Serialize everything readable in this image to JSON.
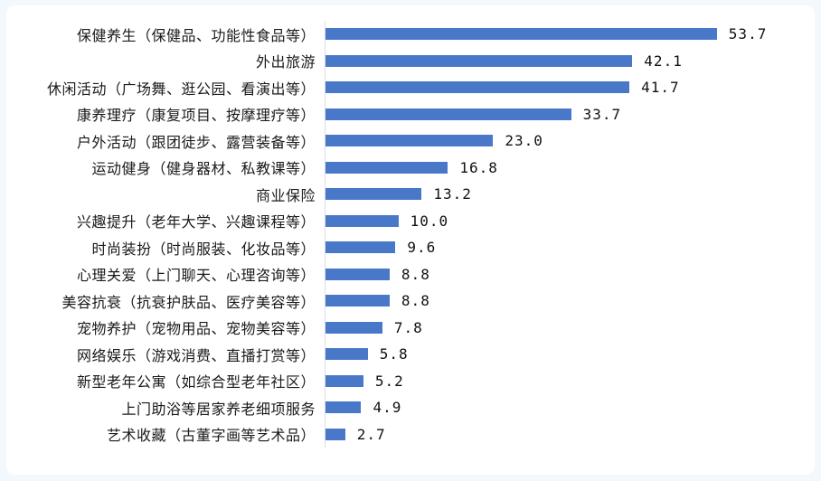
{
  "colors": {
    "bar": "#4A78C8",
    "axis_line": "#D9DEE4",
    "panel_background": "#FFFFFF",
    "page_background": "#F3F8FD",
    "text": "#1A1A1A"
  },
  "chart_data": {
    "type": "bar",
    "orientation": "horizontal",
    "title": "",
    "xlabel": "",
    "ylabel": "",
    "xlim": [
      0,
      67
    ],
    "grid": false,
    "legend": false,
    "categories": [
      "保健养生（保健品、功能性食品等）",
      "外出旅游",
      "休闲活动（广场舞、逛公园、看演出等）",
      "康养理疗（康复项目、按摩理疗等）",
      "户外活动（跟团徒步、露营装备等）",
      "运动健身（健身器材、私教课等）",
      "商业保险",
      "兴趣提升（老年大学、兴趣课程等）",
      "时尚装扮（时尚服装、化妆品等）",
      "心理关爱（上门聊天、心理咨询等）",
      "美容抗衰（抗衰护肤品、医疗美容等）",
      "宠物养护（宠物用品、宠物美容等）",
      "网络娱乐（游戏消费、直播打赏等）",
      "新型老年公寓（如综合型老年社区）",
      "上门助浴等居家养老细项服务",
      "艺术收藏（古董字画等艺术品）"
    ],
    "values": [
      53.7,
      42.1,
      41.7,
      33.7,
      23.0,
      16.8,
      13.2,
      10.0,
      9.6,
      8.8,
      8.8,
      7.8,
      5.8,
      5.2,
      4.9,
      2.7
    ],
    "value_labels": [
      "53.7",
      "42.1",
      "41.7",
      "33.7",
      "23.0",
      "16.8",
      "13.2",
      "10.0",
      "9.6",
      "8.8",
      "8.8",
      "7.8",
      "5.8",
      "5.2",
      "4.9",
      "2.7"
    ]
  }
}
